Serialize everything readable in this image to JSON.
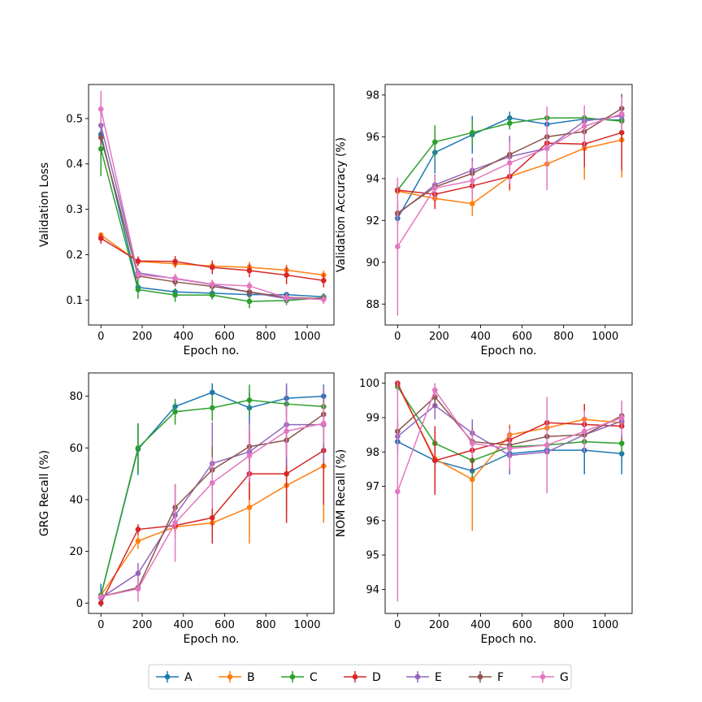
{
  "legend": [
    {
      "name": "A",
      "color": "#1f77b4"
    },
    {
      "name": "B",
      "color": "#ff7f0e"
    },
    {
      "name": "C",
      "color": "#2ca02c"
    },
    {
      "name": "D",
      "color": "#d62728"
    },
    {
      "name": "E",
      "color": "#9467bd"
    },
    {
      "name": "F",
      "color": "#8c564b"
    },
    {
      "name": "G",
      "color": "#e377c2"
    }
  ],
  "chart_data": [
    {
      "type": "line",
      "xlabel": "Epoch no.",
      "ylabel": "Validation Loss",
      "xlim": [
        -60,
        1130
      ],
      "ylim": [
        0.045,
        0.575
      ],
      "xticks": [
        0,
        200,
        400,
        600,
        800,
        1000
      ],
      "yticks": [
        0.1,
        0.2,
        0.3,
        0.4,
        0.5
      ],
      "ytick_labels": [
        "0.1",
        "0.2",
        "0.3",
        "0.4",
        "0.5"
      ],
      "x": [
        0,
        180,
        360,
        540,
        720,
        900,
        1080
      ],
      "series": [
        {
          "name": "A",
          "values": [
            0.465,
            0.128,
            0.118,
            0.115,
            0.112,
            0.112,
            0.107
          ],
          "errors": [
            0.01,
            0.008,
            0.005,
            0.005,
            0.005,
            0.005,
            0.005
          ]
        },
        {
          "name": "B",
          "values": [
            0.243,
            0.185,
            0.18,
            0.175,
            0.172,
            0.166,
            0.155
          ],
          "errors": [
            0.005,
            0.01,
            0.01,
            0.012,
            0.012,
            0.012,
            0.01
          ]
        },
        {
          "name": "C",
          "values": [
            0.433,
            0.123,
            0.111,
            0.111,
            0.097,
            0.099,
            0.105
          ],
          "errors": [
            0.06,
            0.02,
            0.015,
            0.01,
            0.015,
            0.01,
            0.01
          ]
        },
        {
          "name": "D",
          "values": [
            0.236,
            0.186,
            0.185,
            0.172,
            0.165,
            0.155,
            0.143
          ],
          "errors": [
            0.012,
            0.01,
            0.012,
            0.015,
            0.015,
            0.02,
            0.015
          ]
        },
        {
          "name": "E",
          "values": [
            0.485,
            0.16,
            0.147,
            0.134,
            0.117,
            0.103,
            0.103
          ],
          "errors": [
            0.02,
            0.01,
            0.01,
            0.01,
            0.01,
            0.01,
            0.01
          ]
        },
        {
          "name": "F",
          "values": [
            0.458,
            0.153,
            0.14,
            0.13,
            0.118,
            0.106,
            0.103
          ],
          "errors": [
            0.015,
            0.01,
            0.01,
            0.01,
            0.01,
            0.01,
            0.01
          ]
        },
        {
          "name": "G",
          "values": [
            0.521,
            0.156,
            0.148,
            0.135,
            0.131,
            0.105,
            0.101
          ],
          "errors": [
            0.04,
            0.01,
            0.01,
            0.01,
            0.01,
            0.01,
            0.01
          ]
        }
      ]
    },
    {
      "type": "line",
      "xlabel": "Epoch no.",
      "ylabel": "Validation Accuracy (%)",
      "xlim": [
        -60,
        1130
      ],
      "ylim": [
        87.0,
        98.5
      ],
      "xticks": [
        0,
        200,
        400,
        600,
        800,
        1000
      ],
      "yticks": [
        88,
        90,
        92,
        94,
        96,
        98
      ],
      "ytick_labels": [
        "88",
        "90",
        "92",
        "94",
        "96",
        "98"
      ],
      "x": [
        0,
        180,
        360,
        540,
        720,
        900,
        1080
      ],
      "series": [
        {
          "name": "A",
          "values": [
            92.1,
            95.25,
            96.1,
            96.9,
            96.6,
            96.85,
            96.8
          ],
          "errors": [
            0.3,
            1.0,
            0.9,
            0.3,
            0.5,
            0.5,
            0.5
          ]
        },
        {
          "name": "B",
          "values": [
            93.4,
            93.05,
            92.8,
            94.1,
            94.7,
            95.45,
            95.85
          ],
          "errors": [
            0.3,
            0.5,
            0.6,
            0.7,
            0.8,
            1.5,
            1.8
          ]
        },
        {
          "name": "C",
          "values": [
            93.45,
            95.75,
            96.2,
            96.65,
            96.9,
            96.9,
            96.75
          ],
          "errors": [
            0.2,
            0.8,
            0.6,
            0.3,
            0.4,
            0.4,
            0.4
          ]
        },
        {
          "name": "D",
          "values": [
            93.45,
            93.25,
            93.65,
            94.1,
            95.7,
            95.65,
            96.2
          ],
          "errors": [
            0.2,
            0.7,
            0.6,
            0.6,
            0.5,
            1.1,
            1.8
          ]
        },
        {
          "name": "E",
          "values": [
            92.3,
            93.7,
            94.4,
            95.05,
            95.45,
            96.75,
            97.0
          ],
          "errors": [
            0.5,
            0.5,
            0.6,
            1.0,
            1.0,
            0.6,
            0.5
          ]
        },
        {
          "name": "F",
          "values": [
            92.35,
            93.6,
            94.25,
            95.15,
            96.0,
            96.25,
            97.35
          ],
          "errors": [
            0.5,
            0.5,
            0.5,
            0.6,
            0.8,
            0.6,
            0.7
          ]
        },
        {
          "name": "G",
          "values": [
            90.75,
            93.55,
            93.9,
            94.75,
            95.45,
            96.5,
            97.1
          ],
          "errors": [
            3.3,
            0.6,
            0.9,
            1.0,
            2.0,
            1.0,
            0.8
          ]
        }
      ]
    },
    {
      "type": "line",
      "xlabel": "Epoch no.",
      "ylabel": "GRG Recall (%)",
      "xlim": [
        -60,
        1130
      ],
      "ylim": [
        -4,
        89
      ],
      "xticks": [
        0,
        200,
        400,
        600,
        800,
        1000
      ],
      "yticks": [
        0,
        20,
        40,
        60,
        80
      ],
      "ytick_labels": [
        "0",
        "20",
        "40",
        "60",
        "80"
      ],
      "x": [
        0,
        180,
        360,
        540,
        720,
        900,
        1080
      ],
      "series": [
        {
          "name": "A",
          "values": [
            3.0,
            59.5,
            76.0,
            81.5,
            75.5,
            79.2,
            80.0
          ],
          "errors": [
            4.5,
            10.0,
            1.5,
            3.5,
            6.0,
            5.0,
            4.5
          ]
        },
        {
          "name": "B",
          "values": [
            3.0,
            24.0,
            29.5,
            31.0,
            37.0,
            45.5,
            53.0
          ],
          "errors": [
            1.0,
            3.0,
            4.0,
            4.0,
            14.0,
            10.0,
            22.0
          ]
        },
        {
          "name": "C",
          "values": [
            3.0,
            60.0,
            74.0,
            75.5,
            78.5,
            77.0,
            76.0
          ],
          "errors": [
            1.0,
            9.5,
            5.0,
            5.0,
            6.0,
            5.0,
            3.0
          ]
        },
        {
          "name": "D",
          "values": [
            0.0,
            28.5,
            30.0,
            33.0,
            50.0,
            50.0,
            59.0
          ],
          "errors": [
            0.5,
            2.0,
            3.0,
            10.0,
            10.0,
            19.0,
            21.0
          ]
        },
        {
          "name": "E",
          "values": [
            2.0,
            11.5,
            34.0,
            54.0,
            58.5,
            69.0,
            69.0
          ],
          "errors": [
            1.0,
            4.0,
            5.0,
            16.0,
            12.0,
            16.0,
            15.0
          ]
        },
        {
          "name": "F",
          "values": [
            2.5,
            6.0,
            37.0,
            51.5,
            60.5,
            63.0,
            73.0
          ],
          "errors": [
            1.0,
            1.5,
            9.0,
            9.0,
            6.0,
            5.0,
            5.0
          ]
        },
        {
          "name": "G",
          "values": [
            2.5,
            5.5,
            31.0,
            46.5,
            57.0,
            66.5,
            69.5
          ],
          "errors": [
            1.0,
            5.0,
            15.0,
            10.0,
            10.0,
            10.0,
            8.0
          ]
        }
      ]
    },
    {
      "type": "line",
      "xlabel": "Epoch no.",
      "ylabel": "NOM Recall (%)",
      "xlim": [
        -60,
        1130
      ],
      "ylim": [
        93.3,
        100.3
      ],
      "xticks": [
        0,
        200,
        400,
        600,
        800,
        1000
      ],
      "yticks": [
        94,
        95,
        96,
        97,
        98,
        99,
        100
      ],
      "ytick_labels": [
        "94",
        "95",
        "96",
        "97",
        "98",
        "99",
        "100"
      ],
      "x": [
        0,
        180,
        360,
        540,
        720,
        900,
        1080
      ],
      "series": [
        {
          "name": "A",
          "values": [
            98.3,
            97.75,
            97.45,
            97.95,
            98.05,
            98.05,
            97.95
          ],
          "errors": [
            0.3,
            0.3,
            0.5,
            0.6,
            0.5,
            0.7,
            0.6
          ]
        },
        {
          "name": "B",
          "values": [
            99.95,
            97.8,
            97.2,
            98.5,
            98.7,
            98.95,
            98.85
          ],
          "errors": [
            0.1,
            0.8,
            1.5,
            0.3,
            0.3,
            0.3,
            0.3
          ]
        },
        {
          "name": "C",
          "values": [
            99.9,
            98.25,
            97.75,
            98.15,
            98.2,
            98.3,
            98.25
          ],
          "errors": [
            0.1,
            0.2,
            0.5,
            0.3,
            0.3,
            0.3,
            0.3
          ]
        },
        {
          "name": "D",
          "values": [
            100.0,
            97.75,
            98.05,
            98.35,
            98.85,
            98.8,
            98.75
          ],
          "errors": [
            0.05,
            1.0,
            0.6,
            0.4,
            0.6,
            0.6,
            0.4
          ]
        },
        {
          "name": "E",
          "values": [
            98.45,
            99.35,
            98.55,
            97.9,
            98.0,
            98.5,
            98.9
          ],
          "errors": [
            0.5,
            0.4,
            0.4,
            0.5,
            0.6,
            0.5,
            0.5
          ]
        },
        {
          "name": "F",
          "values": [
            98.6,
            99.6,
            98.3,
            98.2,
            98.45,
            98.5,
            99.05
          ],
          "errors": [
            0.3,
            0.3,
            0.4,
            0.4,
            0.5,
            0.5,
            0.4
          ]
        },
        {
          "name": "G",
          "values": [
            96.85,
            99.8,
            98.25,
            98.1,
            98.2,
            98.6,
            99.0
          ],
          "errors": [
            3.2,
            0.2,
            0.4,
            0.6,
            1.4,
            0.6,
            0.5
          ]
        }
      ]
    }
  ]
}
